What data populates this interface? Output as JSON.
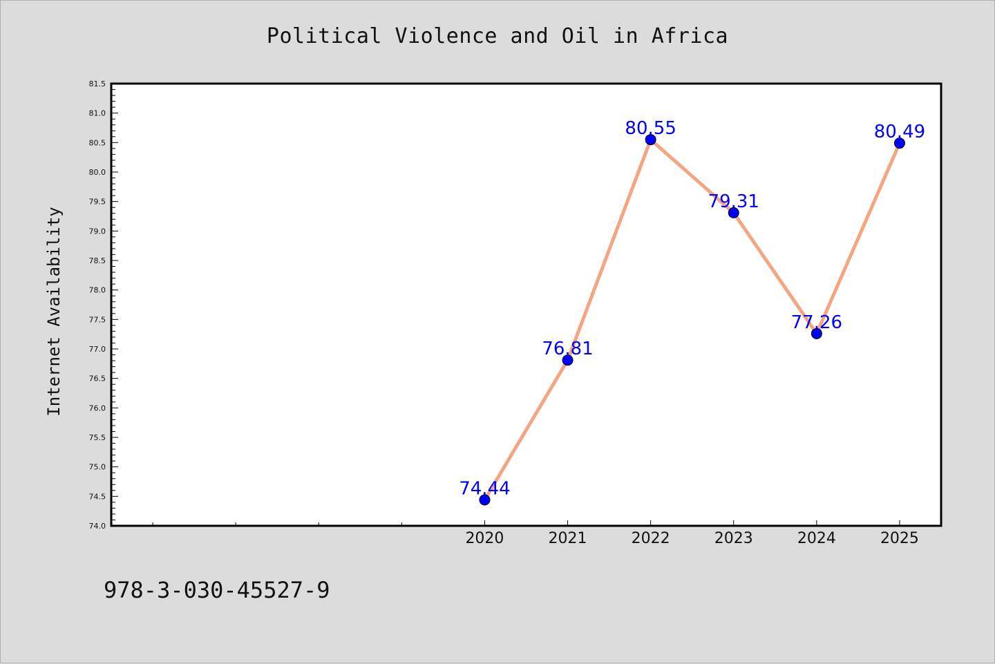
{
  "chart_data": {
    "type": "line",
    "title": "Political Violence and Oil in Africa",
    "xlabel": "",
    "ylabel": "Internet Availability",
    "x": [
      "2020",
      "2021",
      "2022",
      "2023",
      "2024",
      "2025"
    ],
    "series": [
      {
        "values": [
          74.44,
          76.81,
          80.55,
          79.31,
          77.26,
          80.49
        ]
      }
    ],
    "data_labels": [
      "74.44",
      "76.81",
      "80.55",
      "79.31",
      "77.26",
      "80.49"
    ],
    "ylim": [
      74.0,
      81.5
    ],
    "y_ticks": [
      "74.0",
      "74.5",
      "75.0",
      "75.5",
      "76.0",
      "76.5",
      "77.0",
      "77.5",
      "78.0",
      "78.5",
      "79.0",
      "79.5",
      "80.0",
      "80.5",
      "81.0",
      "81.5"
    ],
    "x_range": [
      2015.5,
      2025.5
    ],
    "grid": false,
    "line_color": "#f4a582",
    "marker_color": "#0000ff",
    "label_color": "#0000ff"
  },
  "footer": {
    "isbn": "978-3-030-45527-9"
  }
}
